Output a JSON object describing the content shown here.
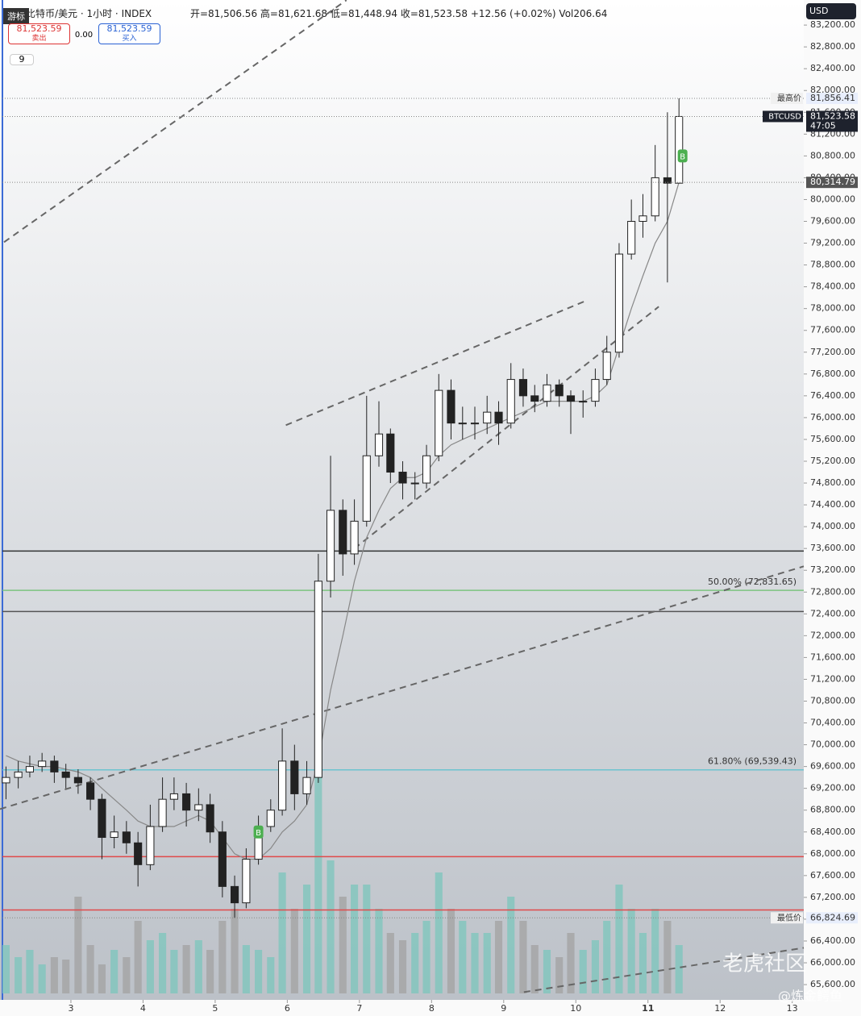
{
  "header": {
    "symbol": "比特币/美元 · 1小时 · INDEX",
    "open": "开=81,506.56",
    "high": "高=81,621.68",
    "low": "低=81,448.94",
    "close": "收=81,523.58",
    "change": "+12.56 (+0.02%)",
    "volume": "Vol206.64",
    "sell_price": "81,523.59",
    "sell": "卖出",
    "spread": "0.00",
    "buy_price": "81,523.59",
    "buy": "买入",
    "indicator_count": "9",
    "cursor_tip": "游标",
    "currency": "USD"
  },
  "watermark": {
    "brand": "老虎社区",
    "author": "@炼金鳄鱼"
  },
  "chart_data": {
    "type": "candlestick",
    "x": [
      2.1,
      2.27,
      2.43,
      2.6,
      2.77,
      2.93,
      3.1,
      3.27,
      3.43,
      3.6,
      3.77,
      3.93,
      4.1,
      4.27,
      4.43,
      4.6,
      4.77,
      4.93,
      5.1,
      5.27,
      5.43,
      5.6,
      5.77,
      5.93,
      6.1,
      6.27,
      6.43,
      6.6,
      6.77,
      6.93,
      7.1,
      7.27,
      7.43,
      7.6,
      7.77,
      7.93,
      8.1,
      8.27,
      8.43,
      8.6,
      8.77,
      8.93,
      9.1,
      9.27,
      9.43,
      9.6,
      9.77,
      9.93,
      10.1,
      10.27,
      10.43,
      10.6,
      10.77,
      10.93,
      11.1,
      11.27,
      11.43
    ],
    "open": [
      69300,
      69400,
      69500,
      69600,
      69700,
      69500,
      69400,
      69300,
      69000,
      68300,
      68400,
      68200,
      67800,
      68500,
      69000,
      69100,
      68800,
      68900,
      68400,
      67400,
      67100,
      67900,
      68500,
      68800,
      69700,
      69100,
      69400,
      73000,
      74300,
      73500,
      74100,
      75300,
      75700,
      75000,
      74800,
      74800,
      75300,
      76500,
      75900,
      75900,
      75900,
      76100,
      75900,
      76700,
      76400,
      76300,
      76600,
      76400,
      76300,
      76300,
      76700,
      77200,
      79000,
      79600,
      79700,
      80400,
      80300
    ],
    "high": [
      69600,
      69700,
      69800,
      69850,
      69800,
      69650,
      69550,
      69400,
      69100,
      68700,
      68600,
      68400,
      68900,
      69400,
      69400,
      69300,
      69200,
      69100,
      68600,
      67600,
      68100,
      68700,
      69000,
      70300,
      70000,
      69700,
      73500,
      75300,
      74500,
      74500,
      76400,
      76300,
      75800,
      75200,
      75000,
      75500,
      76800,
      76700,
      76200,
      76200,
      76400,
      76300,
      77000,
      76900,
      76600,
      76800,
      76700,
      76500,
      76500,
      76900,
      77500,
      79200,
      80000,
      80100,
      81000,
      81600,
      81856.41
    ],
    "low": [
      69000,
      69200,
      69400,
      69500,
      69300,
      69200,
      69100,
      68800,
      67900,
      68100,
      68000,
      67400,
      67700,
      68400,
      68800,
      68500,
      68600,
      68200,
      67200,
      66824.69,
      67000,
      67800,
      68400,
      68700,
      68800,
      68900,
      69300,
      72700,
      73100,
      73300,
      74000,
      75100,
      74800,
      74500,
      74500,
      74700,
      75200,
      75600,
      75600,
      75600,
      75700,
      75500,
      75800,
      76200,
      76100,
      76200,
      76200,
      75700,
      76000,
      76200,
      76600,
      77100,
      78900,
      79300,
      79600,
      78480,
      80300
    ],
    "close": [
      69400,
      69500,
      69600,
      69700,
      69500,
      69400,
      69300,
      69000,
      68300,
      68400,
      68200,
      67800,
      68500,
      69000,
      69100,
      68800,
      68900,
      68400,
      67400,
      67100,
      67900,
      68500,
      68800,
      69700,
      69100,
      69400,
      73000,
      74300,
      73500,
      74100,
      75300,
      75700,
      75000,
      74800,
      74800,
      75300,
      76500,
      75900,
      75900,
      75900,
      76100,
      75900,
      76700,
      76400,
      76300,
      76600,
      76400,
      76300,
      76300,
      76700,
      77200,
      79000,
      79600,
      79700,
      80400,
      80300,
      81523.58
    ],
    "volume": [
      20,
      15,
      18,
      12,
      15,
      14,
      40,
      20,
      12,
      18,
      15,
      30,
      22,
      25,
      18,
      20,
      22,
      18,
      30,
      35,
      20,
      18,
      15,
      50,
      35,
      45,
      100,
      55,
      40,
      45,
      45,
      35,
      25,
      22,
      25,
      30,
      50,
      35,
      30,
      25,
      25,
      30,
      40,
      30,
      20,
      18,
      15,
      25,
      18,
      22,
      30,
      45,
      35,
      25,
      35,
      30,
      20
    ],
    "vlim": [
      0,
      100
    ],
    "ma": [
      69800,
      69700,
      69650,
      69600,
      69600,
      69550,
      69500,
      69400,
      69200,
      69000,
      68800,
      68600,
      68500,
      68500,
      68500,
      68600,
      68700,
      68600,
      68300,
      68000,
      67900,
      67900,
      68100,
      68400,
      68600,
      68900,
      69700,
      71000,
      72000,
      73000,
      73800,
      74300,
      74700,
      74900,
      74900,
      75000,
      75300,
      75500,
      75600,
      75700,
      75800,
      75900,
      76000,
      76100,
      76200,
      76300,
      76300,
      76300,
      76300,
      76400,
      76600,
      77300,
      78000,
      78600,
      79200,
      79600,
      80314.79
    ],
    "up_color": "#26a69a",
    "down_color": "#222222",
    "vol_up_color": "#7fc6bd",
    "vol_down_color": "#a4a4a4",
    "ma_color": "#888888",
    "xlim": [
      2.017,
      13.16
    ],
    "ylim": [
      65320,
      83660
    ],
    "xticks": [
      3,
      4,
      5,
      6,
      7,
      8,
      9,
      10,
      11,
      12,
      13
    ],
    "yticks": [
      {
        "value": 65600,
        "label": "65,600.00"
      },
      {
        "value": 66000,
        "label": "66,000.00"
      },
      {
        "value": 66400,
        "label": "66,400.00"
      },
      {
        "value": 66800,
        "label": "66,800.00"
      },
      {
        "value": 67200,
        "label": "67,200.00"
      },
      {
        "value": 67600,
        "label": "67,600.00"
      },
      {
        "value": 68000,
        "label": "68,000.00"
      },
      {
        "value": 68400,
        "label": "68,400.00"
      },
      {
        "value": 68800,
        "label": "68,800.00"
      },
      {
        "value": 69200,
        "label": "69,200.00"
      },
      {
        "value": 69600,
        "label": "69,600.00"
      },
      {
        "value": 70000,
        "label": "70,000.00"
      },
      {
        "value": 70400,
        "label": "70,400.00"
      },
      {
        "value": 70800,
        "label": "70,800.00"
      },
      {
        "value": 71200,
        "label": "71,200.00"
      },
      {
        "value": 71600,
        "label": "71,600.00"
      },
      {
        "value": 72000,
        "label": "72,000.00"
      },
      {
        "value": 72400,
        "label": "72,400.00"
      },
      {
        "value": 72800,
        "label": "72,800.00"
      },
      {
        "value": 73200,
        "label": "73,200.00"
      },
      {
        "value": 73600,
        "label": "73,600.00"
      },
      {
        "value": 74000,
        "label": "74,000.00"
      },
      {
        "value": 74400,
        "label": "74,400.00"
      },
      {
        "value": 74800,
        "label": "74,800.00"
      },
      {
        "value": 75200,
        "label": "75,200.00"
      },
      {
        "value": 75600,
        "label": "75,600.00"
      },
      {
        "value": 76000,
        "label": "76,000.00"
      },
      {
        "value": 76400,
        "label": "76,400.00"
      },
      {
        "value": 76800,
        "label": "76,800.00"
      },
      {
        "value": 77200,
        "label": "77,200.00"
      },
      {
        "value": 77600,
        "label": "77,600.00"
      },
      {
        "value": 78000,
        "label": "78,000.00"
      },
      {
        "value": 78400,
        "label": "78,400.00"
      },
      {
        "value": 78800,
        "label": "78,800.00"
      },
      {
        "value": 79200,
        "label": "79,200.00"
      },
      {
        "value": 79600,
        "label": "79,600.00"
      },
      {
        "value": 80000,
        "label": "80,000.00"
      },
      {
        "value": 80400,
        "label": "80,400.00"
      },
      {
        "value": 80800,
        "label": "80,800.00"
      },
      {
        "value": 81200,
        "label": "81,200.00"
      },
      {
        "value": 81600,
        "label": "81,600.00"
      },
      {
        "value": 82000,
        "label": "82,000.00"
      },
      {
        "value": 82400,
        "label": "82,400.00"
      },
      {
        "value": 82800,
        "label": "82,800.00"
      },
      {
        "value": 83200,
        "label": "83,200.00"
      }
    ],
    "levels": [
      {
        "value": 73553,
        "color": "#333333"
      },
      {
        "value": 72831.65,
        "color": "#7cc47f",
        "label": "50.00% (72,831.65)"
      },
      {
        "value": 72444,
        "color": "#555555"
      },
      {
        "value": 69539.43,
        "color": "#6cc3cf",
        "label": "61.80% (69,539.43)"
      },
      {
        "value": 67947,
        "color": "#e04a4a"
      },
      {
        "value": 66970,
        "color": "#e04a4a"
      }
    ],
    "trendlines": [
      {
        "x": [
          2.073,
          6.82
        ],
        "y": [
          79219,
          83657
        ]
      },
      {
        "x": [
          2.017,
          13.16
        ],
        "y": [
          68820,
          73272
        ]
      },
      {
        "x": [
          5.98,
          10.16
        ],
        "y": [
          75861,
          78154
        ]
      },
      {
        "x": [
          6.93,
          11.15
        ],
        "y": [
          73598,
          78036
        ]
      },
      {
        "x": [
          9.28,
          13.16
        ],
        "y": [
          65462,
          66275
        ]
      }
    ],
    "price_tags": [
      {
        "name": "最高价",
        "value": 81856.41,
        "label": "81,856.41"
      },
      {
        "name": "BTCUSD",
        "value": 81523.58,
        "label": "81,523.58",
        "countdown": "47:05"
      },
      {
        "value": 80314.79,
        "label": "80,314.79"
      },
      {
        "name": "最低价",
        "value": 66824.69,
        "label": "66,824.69"
      }
    ],
    "signals": [
      {
        "x": 5.6,
        "y": 68400,
        "label": "B"
      },
      {
        "x": 11.48,
        "y": 80800,
        "label": "B"
      }
    ]
  }
}
